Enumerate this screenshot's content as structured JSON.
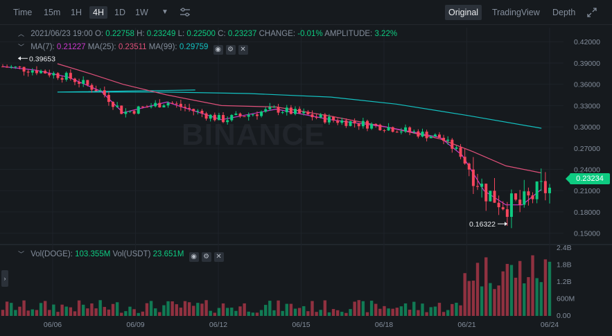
{
  "toolbar": {
    "time_label": "Time",
    "intervals": [
      "15m",
      "1H",
      "4H",
      "1D",
      "1W"
    ],
    "active_interval": "4H",
    "views": [
      "Original",
      "TradingView",
      "Depth"
    ],
    "active_view": "Original"
  },
  "ohlc": {
    "date": "2021/06/23 19:00",
    "o_label": "O:",
    "o": "0.22758",
    "h_label": "H:",
    "h": "0.23249",
    "l_label": "L:",
    "l": "0.22500",
    "c_label": "C:",
    "c": "0.23237",
    "change_label": "CHANGE:",
    "change": "-0.01%",
    "amplitude_label": "AMPLITUDE:",
    "amplitude": "3.22%"
  },
  "ma": {
    "ma7_label": "MA(7):",
    "ma7": "0.21227",
    "ma25_label": "MA(25):",
    "ma25": "0.23511",
    "ma99_label": "MA(99):",
    "ma99": "0.29759"
  },
  "volume": {
    "doge_label": "Vol(DOGE):",
    "doge": "103.355M",
    "usdt_label": "Vol(USDT)",
    "usdt": "23.651M"
  },
  "watermark": "BINANCE",
  "colors": {
    "up": "#0ecb81",
    "down": "#f6465d",
    "ma7": "#cc39ce",
    "ma25": "#e0507a",
    "ma99": "#13c2c2",
    "bg": "#161a1e"
  },
  "chart_data": {
    "type": "candlestick",
    "current_price": "0.23234",
    "high_marker": "0.39653",
    "low_marker": "0.16322",
    "y_ticks": [
      "0.42000",
      "0.39000",
      "0.36000",
      "0.33000",
      "0.30000",
      "0.27000",
      "0.24000",
      "0.21000",
      "0.18000",
      "0.15000"
    ],
    "ylim": [
      0.135,
      0.43
    ],
    "vol_ticks": [
      "2.4B",
      "1.8B",
      "1.2B",
      "600M",
      "0.00"
    ],
    "vol_ylim": [
      0,
      2.4
    ],
    "x_ticks": [
      "06/06",
      "06/09",
      "06/12",
      "06/15",
      "06/18",
      "06/21",
      "06/24"
    ],
    "ma99_points": [
      [
        0.352,
        0.352
      ],
      [
        0.1,
        0.349
      ],
      [
        0.3,
        0.349
      ],
      [
        0.45,
        0.347
      ],
      [
        0.6,
        0.342
      ],
      [
        0.72,
        0.332
      ],
      [
        0.85,
        0.316
      ],
      [
        0.985,
        0.298
      ]
    ],
    "ma25_points": [
      [
        0.1,
        0.389
      ],
      [
        0.16,
        0.375
      ],
      [
        0.22,
        0.36
      ],
      [
        0.3,
        0.345
      ],
      [
        0.4,
        0.33
      ],
      [
        0.5,
        0.328
      ],
      [
        0.6,
        0.315
      ],
      [
        0.7,
        0.3
      ],
      [
        0.8,
        0.283
      ],
      [
        0.86,
        0.265
      ],
      [
        0.92,
        0.245
      ],
      [
        0.985,
        0.235
      ]
    ],
    "ma7_points": [
      [
        0.0,
        0.385
      ],
      [
        0.06,
        0.38
      ],
      [
        0.12,
        0.37
      ],
      [
        0.18,
        0.35
      ],
      [
        0.22,
        0.32
      ],
      [
        0.3,
        0.335
      ],
      [
        0.4,
        0.31
      ],
      [
        0.5,
        0.325
      ],
      [
        0.6,
        0.31
      ],
      [
        0.7,
        0.3
      ],
      [
        0.8,
        0.285
      ],
      [
        0.84,
        0.26
      ],
      [
        0.88,
        0.21
      ],
      [
        0.92,
        0.19
      ],
      [
        0.95,
        0.19
      ],
      [
        0.985,
        0.212
      ]
    ]
  }
}
